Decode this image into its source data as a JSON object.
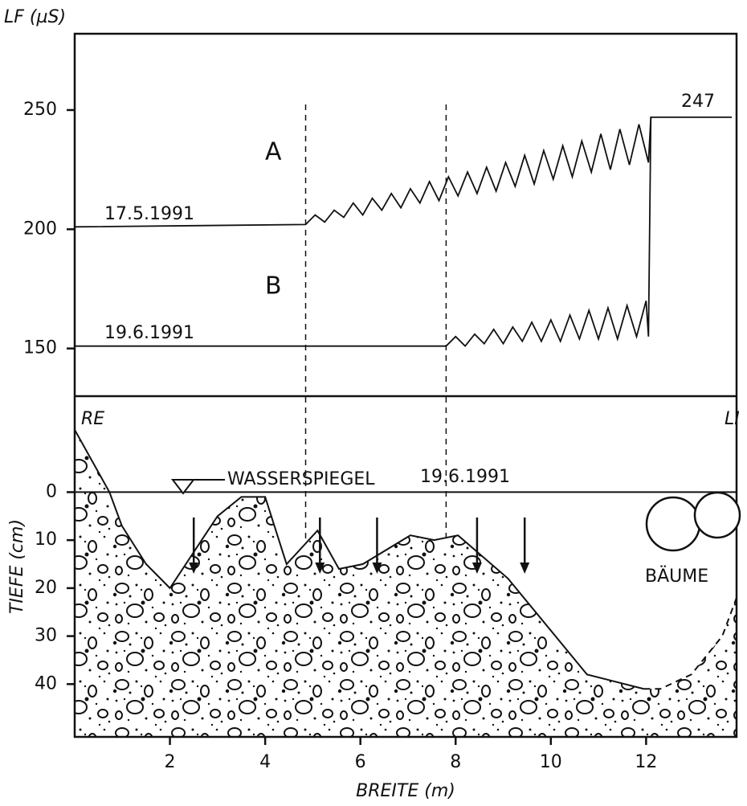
{
  "chart_data": [
    {
      "type": "line",
      "y_label": "LF (µS)",
      "xlim": [
        0,
        13.9
      ],
      "ylim": [
        130,
        282
      ],
      "yticks": [
        150,
        200,
        250
      ],
      "vlines": [
        4.85,
        7.8
      ],
      "series": [
        {
          "name": "A",
          "date": "17.5.1991",
          "end_label": 247,
          "x": [
            0,
            4.85,
            5.05,
            5.25,
            5.45,
            5.65,
            5.85,
            6.05,
            6.25,
            6.45,
            6.65,
            6.85,
            7.05,
            7.25,
            7.45,
            7.65,
            7.85,
            8.05,
            8.25,
            8.45,
            8.65,
            8.85,
            9.05,
            9.25,
            9.45,
            9.65,
            9.85,
            10.05,
            10.25,
            10.45,
            10.65,
            10.85,
            11.05,
            11.25,
            11.45,
            11.65,
            11.85,
            12.05,
            12.1,
            13.8
          ],
          "values": [
            201,
            202,
            206,
            203,
            208,
            205,
            211,
            206,
            213,
            208,
            215,
            209,
            217,
            211,
            220,
            212,
            222,
            214,
            224,
            215,
            226,
            216,
            228,
            218,
            231,
            219,
            233,
            221,
            235,
            222,
            237,
            224,
            240,
            225,
            242,
            227,
            244,
            228,
            247,
            247
          ]
        },
        {
          "name": "B",
          "date": "19.6.1991",
          "x": [
            0,
            7.8,
            8.0,
            8.2,
            8.4,
            8.6,
            8.8,
            9.0,
            9.2,
            9.4,
            9.6,
            9.8,
            10.0,
            10.2,
            10.4,
            10.6,
            10.8,
            11.0,
            11.2,
            11.4,
            11.6,
            11.8,
            12.0,
            12.05,
            12.1
          ],
          "values": [
            151,
            151,
            155,
            151,
            156,
            152,
            158,
            152,
            159,
            153,
            161,
            153,
            162,
            153,
            164,
            154,
            166,
            154,
            167,
            154,
            168,
            155,
            170,
            155,
            247
          ]
        }
      ]
    },
    {
      "type": "area",
      "x_label": "BREITE (m)",
      "y_label": "TIEFE (cm)",
      "left_label": "RE",
      "right_label": "LI",
      "water_label": "WASSERSPIEGEL",
      "water_date": "19.6.1991",
      "water_level": 0,
      "trees_label": "BÄUME",
      "xlim": [
        0,
        13.9
      ],
      "ylim": [
        -20,
        51
      ],
      "y_inverted": true,
      "xticks": [
        2,
        4,
        6,
        8,
        10,
        12
      ],
      "yticks": [
        0,
        10,
        20,
        30,
        40
      ],
      "arrows_x": [
        2.5,
        5.15,
        6.35,
        8.45,
        9.45
      ],
      "series": [
        {
          "style": "solid",
          "x": [
            0,
            0.73,
            0.99,
            1.5,
            2.0,
            3.0,
            3.5,
            4.0,
            4.45,
            5.1,
            5.55,
            6.05,
            7.05,
            7.55,
            8.05,
            9.1,
            10.76,
            11.95
          ],
          "values": [
            -13,
            0,
            7,
            15,
            20,
            5,
            1,
            1,
            15,
            8,
            16,
            15,
            9,
            10,
            9,
            18,
            38,
            41
          ]
        },
        {
          "style": "dashed",
          "x": [
            11.95,
            12.3,
            12.95,
            13.6,
            13.9
          ],
          "values": [
            41,
            41,
            38,
            30,
            22
          ]
        }
      ]
    }
  ]
}
